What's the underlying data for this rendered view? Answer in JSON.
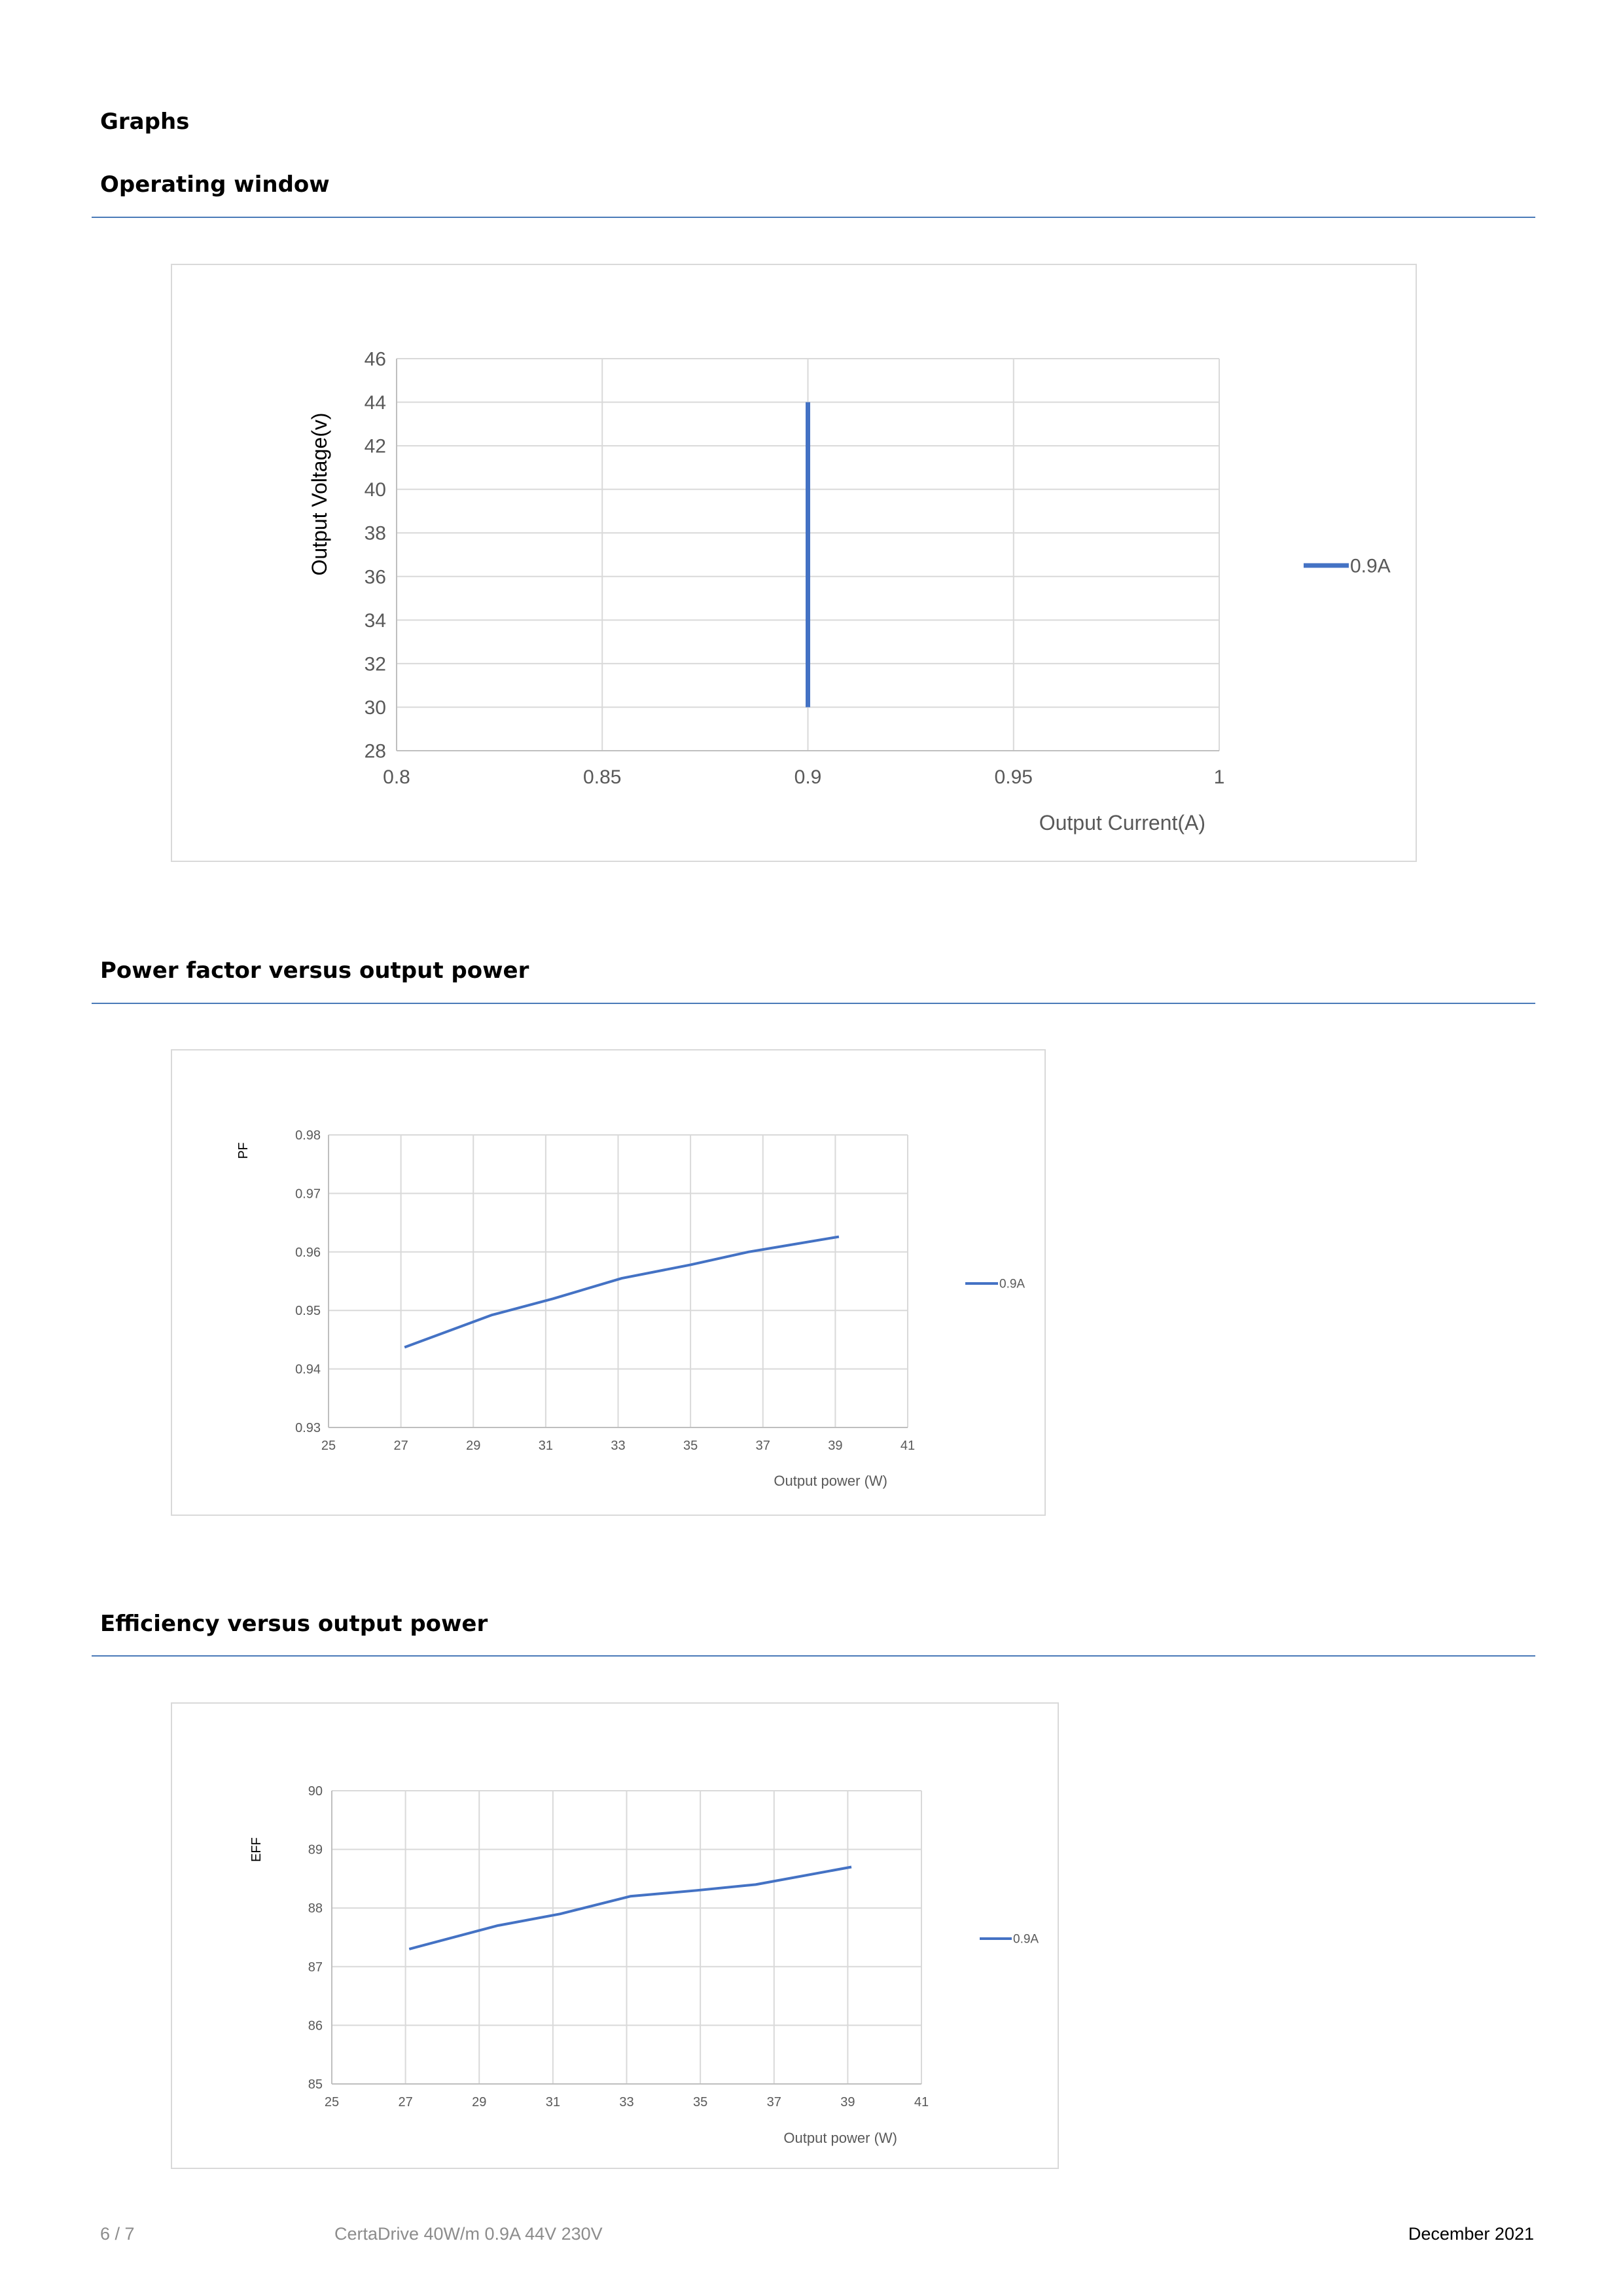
{
  "page": {
    "section_title": "Graphs",
    "headings": {
      "operating_window": "Operating window",
      "pf": "Power factor versus output power",
      "eff": "Efficiency versus output power"
    },
    "footer": {
      "page": "6 / 7",
      "product": "CertaDrive 40W/m 0.9A 44V 230V",
      "date": "December 2021"
    }
  },
  "colors": {
    "series": "#4472c4",
    "rule": "#4a7ab8",
    "grid": "#d9d9d9",
    "axis_text": "#595959"
  },
  "chart_data": [
    {
      "id": "operating_window",
      "type": "line",
      "xlabel": "Output Current(A)",
      "ylabel": "Output Voltage(v)",
      "xlim": [
        0.8,
        1
      ],
      "ylim": [
        28,
        46
      ],
      "xticks": [
        "0.8",
        "0.85",
        "0.9",
        "0.95",
        "1"
      ],
      "yticks": [
        "28",
        "30",
        "32",
        "34",
        "36",
        "38",
        "40",
        "42",
        "44",
        "46"
      ],
      "grid": true,
      "legend": "right",
      "series": [
        {
          "name": "0.9A",
          "x": [
            0.9,
            0.9
          ],
          "y": [
            30,
            44
          ]
        }
      ]
    },
    {
      "id": "pf",
      "type": "line",
      "xlabel": "Output power (W)",
      "ylabel": "PF",
      "xlim": [
        25,
        41
      ],
      "ylim": [
        0.93,
        0.98
      ],
      "xticks": [
        "25",
        "27",
        "29",
        "31",
        "33",
        "35",
        "37",
        "39",
        "41"
      ],
      "yticks": [
        "0.93",
        "0.94",
        "0.95",
        "0.96",
        "0.97",
        "0.98"
      ],
      "grid": true,
      "legend": "right",
      "series": [
        {
          "name": "0.9A",
          "x": [
            27.1,
            29.5,
            31.2,
            33.1,
            35.0,
            36.6,
            39.1
          ],
          "y": [
            0.9437,
            0.9492,
            0.952,
            0.9555,
            0.9578,
            0.96,
            0.9626
          ]
        }
      ]
    },
    {
      "id": "eff",
      "type": "line",
      "xlabel": "Output power (W)",
      "ylabel": "EFF",
      "xlim": [
        25,
        41
      ],
      "ylim": [
        85,
        90
      ],
      "xticks": [
        "25",
        "27",
        "29",
        "31",
        "33",
        "35",
        "37",
        "39",
        "41"
      ],
      "yticks": [
        "85",
        "86",
        "87",
        "88",
        "89",
        "90"
      ],
      "grid": true,
      "legend": "right",
      "series": [
        {
          "name": "0.9A",
          "x": [
            27.1,
            29.5,
            31.2,
            33.1,
            34.9,
            36.5,
            39.1
          ],
          "y": [
            87.3,
            87.7,
            87.9,
            88.2,
            88.3,
            88.4,
            88.7
          ]
        }
      ]
    }
  ]
}
